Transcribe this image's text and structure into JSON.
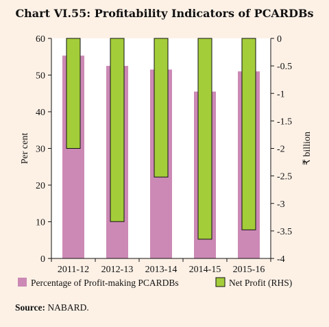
{
  "title": "Chart VI.55: Profitability Indicators of PCARDBs",
  "source": {
    "label": "Source:",
    "text": "NABARD."
  },
  "colors": {
    "background": "#fdf1e6",
    "bar_left": "#cc89b5",
    "bar_right": "#a4cd3a",
    "bar_right_stroke": "#111111"
  },
  "chart_data": {
    "type": "bar",
    "categories": [
      "2011-12",
      "2012-13",
      "2013-14",
      "2014-15",
      "2015-16"
    ],
    "series": [
      {
        "name": "Percentage of Profit-making PCARDBs",
        "axis": "left",
        "values": [
          55.3,
          52.5,
          51.5,
          45.5,
          51.0
        ]
      },
      {
        "name": "Net Profit (RHS)",
        "axis": "right",
        "values": [
          -2.0,
          -3.33,
          -2.52,
          -3.65,
          -3.48
        ]
      }
    ],
    "ylabel": "Per cent",
    "y2label": "₹ billion",
    "ylim": [
      0,
      60
    ],
    "y2lim": [
      -4,
      0
    ],
    "yticks": [
      "0",
      "10",
      "20",
      "30",
      "40",
      "50",
      "60"
    ],
    "y2ticks": [
      "0",
      "-0.5",
      "-1",
      "-1.5",
      "-2",
      "-2.5",
      "-3",
      "-3.5",
      "-4"
    ],
    "legend_position": "bottom",
    "grid": false
  }
}
